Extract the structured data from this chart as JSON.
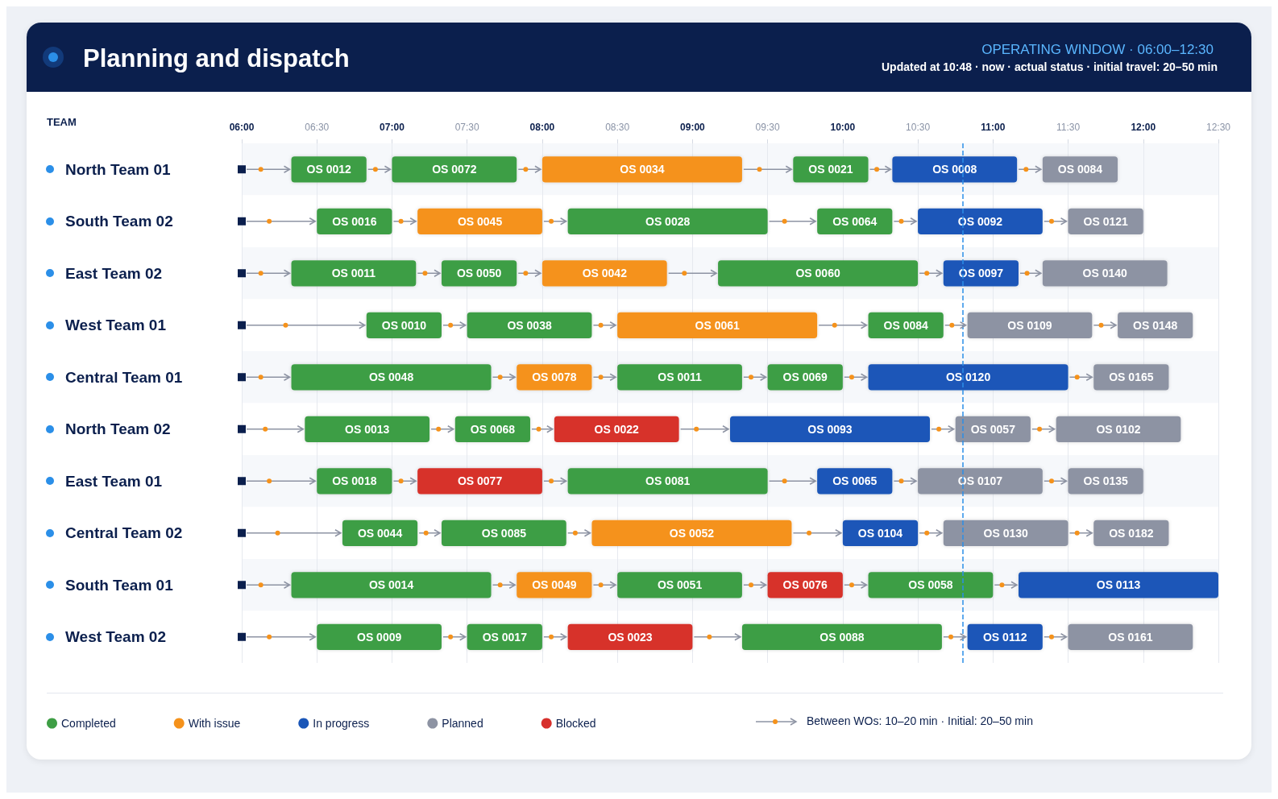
{
  "chart_data": {
    "type": "bar",
    "orientation": "horizontal",
    "title": "Planning and dispatch",
    "subtitle": "OPERATING WINDOW · 06:00–12:30",
    "ylabel": "TEAM",
    "annotations": [
      "Updated at 10:48 · now · actual status · initial travel: 20–50 min",
      "Between WOs: 10–20 min · Initial: 20–50 min"
    ],
    "categories": [
      "North Team 01",
      "South Team 02",
      "East Team 02",
      "West Team 01",
      "Central Team 01",
      "North Team 02",
      "East Team 01",
      "Central Team 02",
      "South Team 01",
      "West Team 02"
    ],
    "xlim": [
      6,
      12.5
    ],
    "xticks": [
      {
        "value": 6,
        "label": "06:00"
      },
      {
        "value": 6.5,
        "label": "06:30"
      },
      {
        "value": 7,
        "label": "07:00"
      },
      {
        "value": 7.5,
        "label": "07:30"
      },
      {
        "value": 8,
        "label": "08:00"
      },
      {
        "value": 8.5,
        "label": "08:30"
      },
      {
        "value": 9,
        "label": "09:00"
      },
      {
        "value": 9.5,
        "label": "09:30"
      },
      {
        "value": 10,
        "label": "10:00"
      },
      {
        "value": 10.5,
        "label": "10:30"
      },
      {
        "value": 11,
        "label": "11:00"
      },
      {
        "value": 11.5,
        "label": "11:30"
      },
      {
        "value": 12,
        "label": "12:00"
      },
      {
        "value": 12.5,
        "label": "12:30"
      }
    ],
    "grid": "x",
    "legend": "bottom",
    "ref_lines": [
      {
        "axis": "x",
        "value": 10.8,
        "color": "#2b8fe8",
        "line_style": "dashed"
      }
    ],
    "series": [
      {
        "name": "Completed",
        "color": "#3e9e45",
        "x": [
          "North Team 01",
          "North Team 01",
          "North Team 01",
          "South Team 02",
          "South Team 02",
          "South Team 02",
          "East Team 02",
          "East Team 02",
          "East Team 02",
          "West Team 01",
          "West Team 01",
          "West Team 01",
          "Central Team 01",
          "Central Team 01",
          "Central Team 01",
          "North Team 02",
          "North Team 02",
          "East Team 01",
          "East Team 01",
          "Central Team 02",
          "Central Team 02",
          "South Team 01",
          "South Team 01",
          "South Team 01",
          "West Team 02",
          "West Team 02",
          "West Team 02"
        ],
        "base": [
          6.33,
          7,
          9.67,
          6.5,
          8.17,
          9.83,
          6.33,
          7.33,
          9.17,
          6.83,
          7.5,
          10.17,
          6.33,
          8.5,
          9.5,
          6.42,
          7.42,
          6.5,
          8.17,
          6.67,
          7.33,
          6.33,
          8.5,
          10.17,
          6.5,
          7.5,
          9.33
        ],
        "values": [
          0.5,
          0.83,
          0.5,
          0.5,
          1.33,
          0.5,
          0.83,
          0.5,
          1.33,
          0.5,
          0.83,
          0.5,
          1.33,
          0.83,
          0.5,
          0.83,
          0.5,
          0.5,
          1.33,
          0.5,
          0.83,
          1.33,
          0.83,
          0.83,
          0.83,
          0.5,
          1.33
        ],
        "value_labels": [
          "OS 0012",
          "OS 0072",
          "OS 0021",
          "OS 0016",
          "OS 0028",
          "OS 0064",
          "OS 0011",
          "OS 0050",
          "OS 0060",
          "OS 0010",
          "OS 0038",
          "OS 0084",
          "OS 0048",
          "OS 0011",
          "OS 0069",
          "OS 0013",
          "OS 0068",
          "OS 0018",
          "OS 0081",
          "OS 0044",
          "OS 0085",
          "OS 0014",
          "OS 0051",
          "OS 0058",
          "OS 0009",
          "OS 0017",
          "OS 0088"
        ]
      },
      {
        "name": "With issue",
        "color": "#f5921b",
        "x": [
          "North Team 01",
          "South Team 02",
          "East Team 02",
          "West Team 01",
          "Central Team 01",
          "Central Team 02",
          "South Team 01"
        ],
        "base": [
          8,
          7.17,
          8,
          8.5,
          7.83,
          8.33,
          7.83
        ],
        "values": [
          1.33,
          0.83,
          0.83,
          1.33,
          0.5,
          1.33,
          0.5
        ],
        "value_labels": [
          "OS 0034",
          "OS 0045",
          "OS 0042",
          "OS 0061",
          "OS 0078",
          "OS 0052",
          "OS 0049"
        ]
      },
      {
        "name": "In progress",
        "color": "#1a56b8",
        "x": [
          "North Team 01",
          "South Team 02",
          "East Team 02",
          "Central Team 01",
          "North Team 02",
          "East Team 01",
          "Central Team 02",
          "South Team 01",
          "West Team 02"
        ],
        "base": [
          10.33,
          10.5,
          10.67,
          10.17,
          9.25,
          9.83,
          10,
          11.17,
          10.83
        ],
        "values": [
          0.83,
          0.83,
          0.5,
          1.33,
          1.33,
          0.5,
          0.5,
          1.33,
          0.5
        ],
        "value_labels": [
          "OS 0008",
          "OS 0092",
          "OS 0097",
          "OS 0120",
          "OS 0093",
          "OS 0065",
          "OS 0104",
          "OS 0113",
          "OS 0112"
        ]
      },
      {
        "name": "Planned",
        "color": "#8d93a3",
        "x": [
          "North Team 01",
          "South Team 02",
          "East Team 02",
          "West Team 01",
          "West Team 01",
          "Central Team 01",
          "North Team 02",
          "North Team 02",
          "East Team 01",
          "East Team 01",
          "Central Team 02",
          "Central Team 02",
          "West Team 02"
        ],
        "base": [
          11.33,
          11.5,
          11.33,
          10.83,
          11.83,
          11.67,
          10.75,
          11.42,
          10.5,
          11.5,
          10.67,
          11.67,
          11.5
        ],
        "values": [
          0.5,
          0.5,
          0.83,
          0.83,
          0.5,
          0.5,
          0.5,
          0.83,
          0.83,
          0.5,
          0.83,
          0.5,
          0.83
        ],
        "value_labels": [
          "OS 0084",
          "OS 0121",
          "OS 0140",
          "OS 0109",
          "OS 0148",
          "OS 0165",
          "OS 0057",
          "OS 0102",
          "OS 0107",
          "OS 0135",
          "OS 0130",
          "OS 0182",
          "OS 0161"
        ]
      },
      {
        "name": "Blocked",
        "color": "#d7302c",
        "x": [
          "North Team 02",
          "East Team 01",
          "South Team 01",
          "West Team 02"
        ],
        "base": [
          8.08,
          7.17,
          9.5,
          8.17
        ],
        "values": [
          0.83,
          0.83,
          0.5,
          0.83
        ],
        "value_labels": [
          "OS 0022",
          "OS 0077",
          "OS 0076",
          "OS 0023"
        ]
      }
    ]
  }
}
